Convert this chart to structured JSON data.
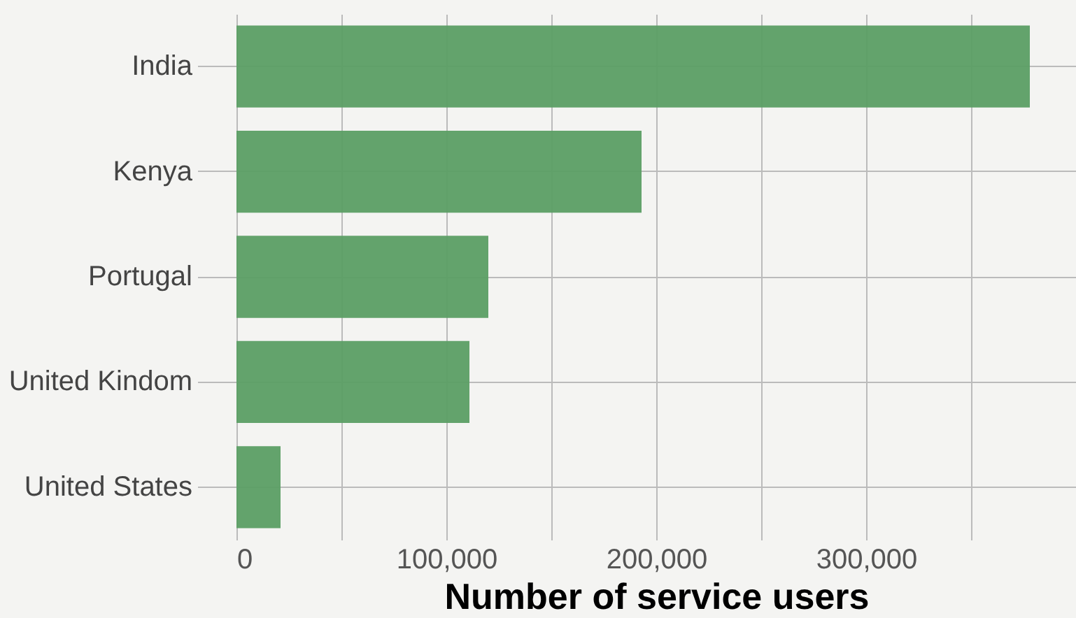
{
  "chart_data": {
    "type": "bar",
    "orientation": "horizontal",
    "xlabel": "Number of service users",
    "categories": [
      "India",
      "Kenya",
      "Portugal",
      "United Kindom",
      "United States"
    ],
    "series": [
      {
        "color": "#5b9e64",
        "values": [
          378000,
          193000,
          120000,
          111000,
          21000
        ]
      }
    ],
    "xlim": [
      0,
      400000
    ],
    "xticks": [
      {
        "value": 0,
        "label": "0"
      },
      {
        "value": 50000,
        "label": null
      },
      {
        "value": 100000,
        "label": "100,000"
      },
      {
        "value": 150000,
        "label": null
      },
      {
        "value": 200000,
        "label": "200,000"
      },
      {
        "value": 250000,
        "label": null
      },
      {
        "value": 300000,
        "label": "300,000"
      },
      {
        "value": 350000,
        "label": null
      }
    ],
    "grid": true,
    "legend": false
  }
}
